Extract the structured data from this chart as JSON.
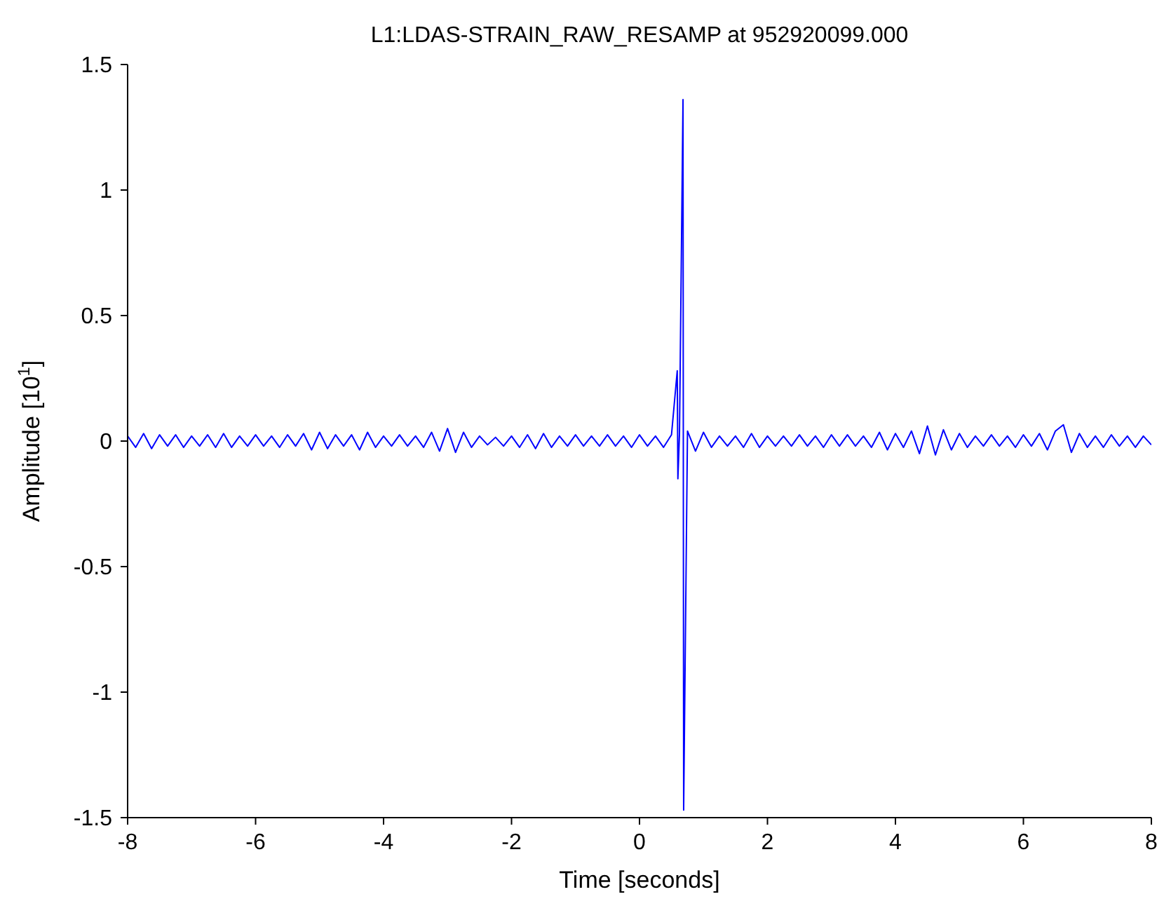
{
  "chart_data": {
    "type": "line",
    "title": "L1:LDAS-STRAIN_RAW_RESAMP at 952920099.000",
    "xlabel": "Time [seconds]",
    "ylabel": "Amplitude [10$^{1}$]",
    "xlim": [
      -8,
      8
    ],
    "xticks": [
      -8,
      -6,
      -4,
      -2,
      0,
      2,
      4,
      6,
      8
    ],
    "ylim": [
      -1.5,
      1.5
    ],
    "yticks": [
      -1.5,
      -1,
      -0.5,
      0,
      0.5,
      1,
      1.5
    ],
    "grid": false,
    "legend": false,
    "series": [
      {
        "color": "#0000ff",
        "x": [
          -8,
          -7.875,
          -7.75,
          -7.625,
          -7.5,
          -7.375,
          -7.25,
          -7.125,
          -7,
          -6.875,
          -6.75,
          -6.625,
          -6.5,
          -6.375,
          -6.25,
          -6.125,
          -6,
          -5.875,
          -5.75,
          -5.625,
          -5.5,
          -5.375,
          -5.25,
          -5.125,
          -5,
          -4.875,
          -4.75,
          -4.625,
          -4.5,
          -4.375,
          -4.25,
          -4.125,
          -4,
          -3.875,
          -3.75,
          -3.625,
          -3.5,
          -3.375,
          -3.25,
          -3.125,
          -3,
          -2.875,
          -2.75,
          -2.625,
          -2.5,
          -2.375,
          -2.25,
          -2.125,
          -2,
          -1.875,
          -1.75,
          -1.625,
          -1.5,
          -1.375,
          -1.25,
          -1.125,
          -1,
          -0.875,
          -0.75,
          -0.625,
          -0.5,
          -0.375,
          -0.25,
          -0.125,
          0,
          0.125,
          0.25,
          0.375,
          0.5,
          0.59,
          0.6,
          0.625,
          0.68,
          0.69,
          0.75,
          0.875,
          1,
          1.125,
          1.25,
          1.375,
          1.5,
          1.625,
          1.75,
          1.875,
          2,
          2.125,
          2.25,
          2.375,
          2.5,
          2.625,
          2.75,
          2.875,
          3,
          3.125,
          3.25,
          3.375,
          3.5,
          3.625,
          3.75,
          3.875,
          4,
          4.125,
          4.25,
          4.375,
          4.5,
          4.625,
          4.75,
          4.875,
          5,
          5.125,
          5.25,
          5.375,
          5.5,
          5.625,
          5.75,
          5.875,
          6,
          6.125,
          6.25,
          6.375,
          6.5,
          6.625,
          6.75,
          6.875,
          7,
          7.125,
          7.25,
          7.375,
          7.5,
          7.625,
          7.75,
          7.875,
          8
        ],
        "values": [
          0.02,
          -0.025,
          0.03,
          -0.03,
          0.025,
          -0.02,
          0.025,
          -0.025,
          0.02,
          -0.02,
          0.025,
          -0.025,
          0.03,
          -0.025,
          0.02,
          -0.02,
          0.025,
          -0.02,
          0.02,
          -0.025,
          0.025,
          -0.02,
          0.03,
          -0.035,
          0.035,
          -0.03,
          0.025,
          -0.02,
          0.025,
          -0.035,
          0.035,
          -0.025,
          0.02,
          -0.02,
          0.025,
          -0.02,
          0.02,
          -0.025,
          0.035,
          -0.04,
          0.05,
          -0.045,
          0.035,
          -0.025,
          0.02,
          -0.015,
          0.015,
          -0.02,
          0.02,
          -0.025,
          0.025,
          -0.03,
          0.03,
          -0.025,
          0.02,
          -0.02,
          0.025,
          -0.02,
          0.02,
          -0.02,
          0.025,
          -0.02,
          0.02,
          -0.025,
          0.025,
          -0.02,
          0.02,
          -0.025,
          0.025,
          0.28,
          -0.15,
          0.03,
          1.36,
          -1.47,
          0.04,
          -0.04,
          0.035,
          -0.025,
          0.02,
          -0.02,
          0.02,
          -0.025,
          0.03,
          -0.025,
          0.02,
          -0.02,
          0.02,
          -0.02,
          0.025,
          -0.02,
          0.02,
          -0.025,
          0.025,
          -0.02,
          0.025,
          -0.02,
          0.02,
          -0.025,
          0.035,
          -0.035,
          0.03,
          -0.025,
          0.04,
          -0.05,
          0.06,
          -0.055,
          0.045,
          -0.035,
          0.03,
          -0.025,
          0.02,
          -0.02,
          0.025,
          -0.02,
          0.02,
          -0.025,
          0.025,
          -0.02,
          0.03,
          -0.035,
          0.04,
          0.065,
          -0.045,
          0.03,
          -0.025,
          0.02,
          -0.025,
          0.025,
          -0.02,
          0.02,
          -0.025,
          0.02,
          -0.015
        ]
      }
    ]
  }
}
